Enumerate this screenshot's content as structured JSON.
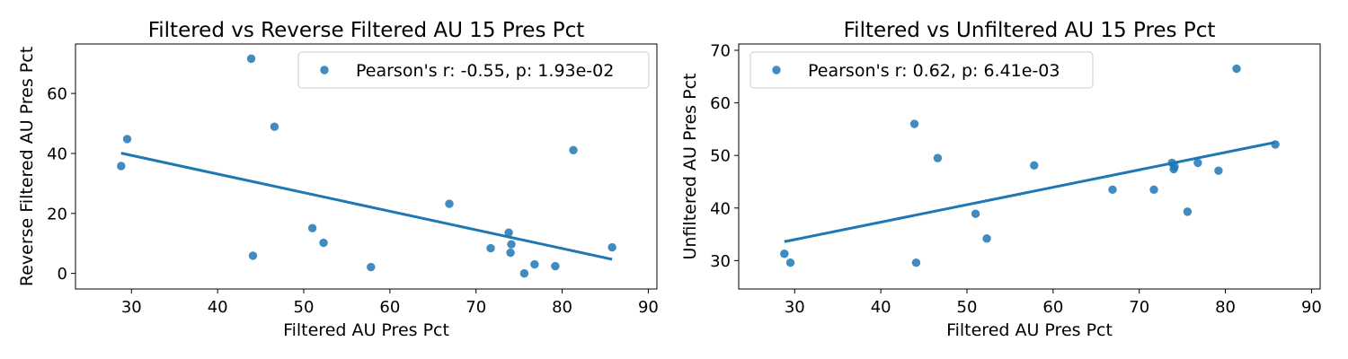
{
  "chart_data": [
    {
      "type": "scatter",
      "title": "Filtered vs Reverse Filtered AU 15 Pres Pct",
      "xlabel": "Filtered AU Pres Pct",
      "ylabel": "Reverse Filtered AU Pres Pct",
      "xlim": [
        23.5,
        91
      ],
      "ylim": [
        -5.2,
        76.5
      ],
      "xticks": [
        30,
        40,
        50,
        60,
        70,
        80,
        90
      ],
      "yticks": [
        0,
        20,
        40,
        60
      ],
      "legend": "top-right",
      "grid": false,
      "series": [
        {
          "name": "Pearson's r: -0.55, p: 1.93e-02",
          "color": "#1f77b4",
          "x": [
            28.8,
            29.5,
            43.9,
            44.1,
            46.6,
            51.0,
            52.3,
            57.8,
            66.9,
            71.7,
            73.8,
            74.0,
            74.1,
            75.6,
            76.8,
            79.2,
            81.3,
            85.8
          ],
          "y": [
            35.8,
            44.8,
            71.6,
            5.9,
            48.9,
            15.1,
            10.2,
            2.1,
            23.2,
            8.4,
            13.6,
            6.9,
            9.7,
            0.0,
            3.0,
            2.4,
            41.1,
            8.7
          ]
        }
      ],
      "regression": {
        "x": [
          28.8,
          85.8
        ],
        "y": [
          40.1,
          4.7
        ]
      }
    },
    {
      "type": "scatter",
      "title": "Filtered vs Unfiltered AU 15 Pres Pct",
      "xlabel": "Filtered AU Pres Pct",
      "ylabel": "Unfiltered AU Pres Pct",
      "xlim": [
        23.5,
        91
      ],
      "ylim": [
        24.6,
        71.2
      ],
      "xticks": [
        30,
        40,
        50,
        60,
        70,
        80,
        90
      ],
      "yticks": [
        30,
        40,
        50,
        60,
        70
      ],
      "legend": "top-left",
      "grid": false,
      "series": [
        {
          "name": "Pearson's r: 0.62, p: 6.41e-03",
          "color": "#1f77b4",
          "x": [
            28.8,
            29.5,
            43.9,
            44.1,
            46.6,
            51.0,
            52.3,
            57.8,
            66.9,
            71.7,
            73.8,
            74.0,
            74.1,
            75.6,
            76.8,
            79.2,
            81.3,
            85.8
          ],
          "y": [
            31.3,
            29.6,
            56.0,
            29.6,
            49.5,
            38.9,
            34.2,
            48.1,
            43.5,
            43.5,
            48.6,
            47.4,
            47.9,
            39.3,
            48.6,
            47.1,
            66.5,
            52.1
          ]
        }
      ],
      "regression": {
        "x": [
          28.8,
          85.8
        ],
        "y": [
          33.6,
          52.5
        ]
      }
    }
  ]
}
